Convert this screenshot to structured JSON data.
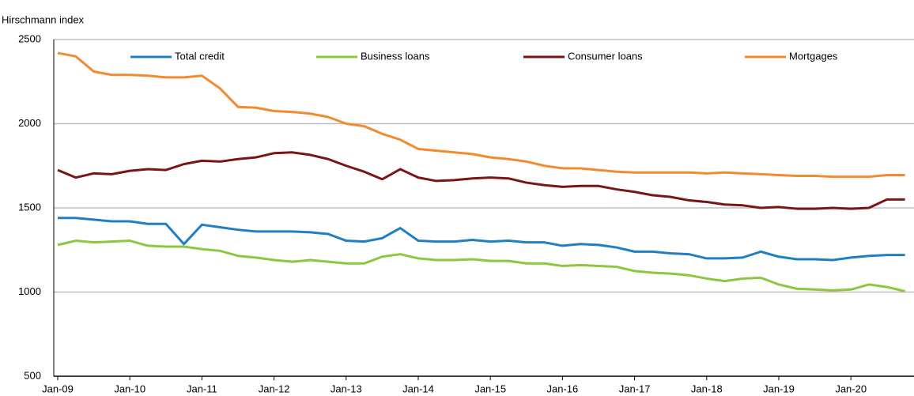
{
  "chart_data": {
    "type": "line",
    "y_label": "Hirschmann index",
    "categories": [
      "Jan-09",
      null,
      null,
      null,
      "Jan-10",
      null,
      null,
      null,
      "Jan-11",
      null,
      null,
      null,
      "Jan-12",
      null,
      null,
      null,
      "Jan-13",
      null,
      null,
      null,
      "Jan-14",
      null,
      null,
      null,
      "Jan-15",
      null,
      null,
      null,
      "Jan-16",
      null,
      null,
      null,
      "Jan-17",
      null,
      null,
      null,
      "Jan-18",
      null,
      null,
      null,
      "Jan-19",
      null,
      null,
      null,
      "Jan-20",
      null,
      null,
      null
    ],
    "series": [
      {
        "name": "Total credit",
        "color": "#1f7fc4",
        "values": [
          1440,
          1440,
          1430,
          1420,
          1420,
          1405,
          1405,
          1285,
          1400,
          1385,
          1370,
          1360,
          1360,
          1360,
          1355,
          1345,
          1305,
          1300,
          1320,
          1380,
          1305,
          1300,
          1300,
          1310,
          1300,
          1305,
          1295,
          1295,
          1275,
          1285,
          1280,
          1265,
          1240,
          1240,
          1230,
          1225,
          1200,
          1200,
          1205,
          1240,
          1210,
          1195,
          1195,
          1190,
          1205,
          1215,
          1220,
          1220
        ]
      },
      {
        "name": "Business loans",
        "color": "#8dc63f",
        "values": [
          1280,
          1305,
          1295,
          1300,
          1305,
          1275,
          1270,
          1270,
          1255,
          1245,
          1215,
          1205,
          1190,
          1180,
          1190,
          1180,
          1170,
          1170,
          1210,
          1225,
          1200,
          1190,
          1190,
          1195,
          1185,
          1185,
          1170,
          1170,
          1155,
          1160,
          1155,
          1150,
          1125,
          1115,
          1110,
          1100,
          1080,
          1065,
          1080,
          1085,
          1045,
          1020,
          1015,
          1010,
          1015,
          1045,
          1030,
          1005
        ]
      },
      {
        "name": "Consumer loans",
        "color": "#7b1416",
        "values": [
          1725,
          1680,
          1705,
          1700,
          1720,
          1730,
          1725,
          1760,
          1780,
          1775,
          1790,
          1800,
          1825,
          1830,
          1815,
          1790,
          1750,
          1715,
          1670,
          1730,
          1680,
          1660,
          1665,
          1675,
          1680,
          1675,
          1650,
          1635,
          1625,
          1630,
          1630,
          1610,
          1595,
          1575,
          1565,
          1545,
          1535,
          1520,
          1515,
          1500,
          1505,
          1495,
          1495,
          1500,
          1495,
          1500,
          1550,
          1550
        ]
      },
      {
        "name": "Mortgages",
        "color": "#f28a2e",
        "values": [
          2420,
          2400,
          2310,
          2290,
          2290,
          2285,
          2275,
          2275,
          2285,
          2210,
          2100,
          2095,
          2075,
          2070,
          2060,
          2040,
          2000,
          1985,
          1940,
          1905,
          1850,
          1840,
          1830,
          1820,
          1800,
          1790,
          1775,
          1750,
          1735,
          1735,
          1725,
          1715,
          1710,
          1710,
          1710,
          1710,
          1705,
          1710,
          1705,
          1700,
          1695,
          1690,
          1690,
          1685,
          1685,
          1685,
          1695,
          1695
        ]
      }
    ],
    "ylim": [
      500,
      2500
    ],
    "yticks": [
      500,
      1000,
      1500,
      2000,
      2500
    ],
    "grid": true,
    "legend": "top"
  }
}
